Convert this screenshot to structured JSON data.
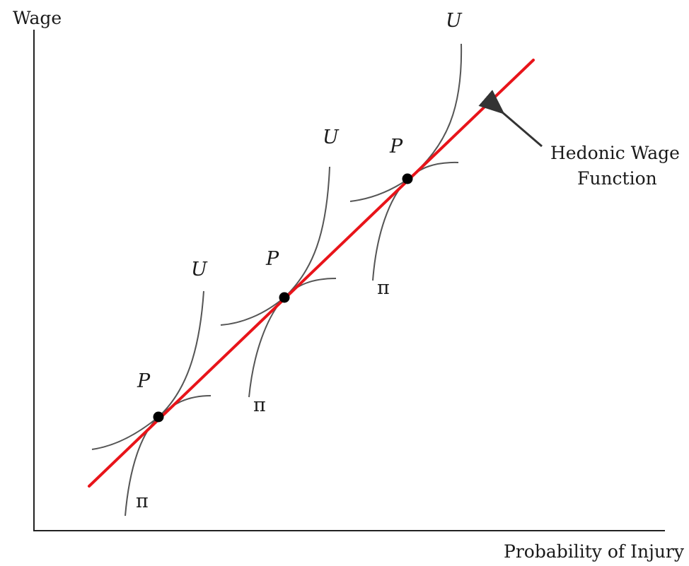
{
  "axes": {
    "y_label": "Wage",
    "x_label": "Probability of Injury"
  },
  "hedonic_line": {
    "color": "#e8141a",
    "label_line1": "Hedonic Wage",
    "label_line2": "Function"
  },
  "tangencies": [
    {
      "indifference_label": "U",
      "isoprofit_label": "π",
      "point_label": "P"
    },
    {
      "indifference_label": "U",
      "isoprofit_label": "π",
      "point_label": "P"
    },
    {
      "indifference_label": "U",
      "isoprofit_label": "π",
      "point_label": "P"
    }
  ],
  "colors": {
    "curves": "#555555",
    "points": "#000000",
    "axes": "#222222"
  }
}
